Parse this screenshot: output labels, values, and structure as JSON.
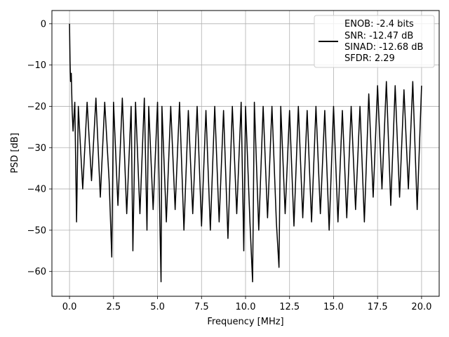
{
  "chart_data": {
    "type": "line",
    "title": "",
    "xlabel": "Frequency [MHz]",
    "ylabel": "PSD [dB]",
    "xlim": [
      -1.0,
      21.0
    ],
    "ylim": [
      -66.0,
      3.2
    ],
    "xticks": [
      0.0,
      2.5,
      5.0,
      7.5,
      10.0,
      12.5,
      15.0,
      17.5,
      20.0
    ],
    "xtick_labels": [
      "0.0",
      "2.5",
      "5.0",
      "7.5",
      "10.0",
      "12.5",
      "15.0",
      "17.5",
      "20.0"
    ],
    "yticks": [
      0,
      -10,
      -20,
      -30,
      -40,
      -50,
      -60
    ],
    "ytick_labels": [
      "0",
      "−10",
      "−20",
      "−30",
      "−40",
      "−50",
      "−60"
    ],
    "grid": true,
    "legend_position": "top-right",
    "legend_entries": [
      "ENOB: -2.4 bits",
      "SNR: -12.47 dB",
      "SINAD: -12.68 dB",
      "SFDR: 2.29"
    ],
    "line_color": "#000000",
    "series": [
      {
        "x": [
          0.0,
          0.03,
          0.06,
          0.1,
          0.15,
          0.2,
          0.3,
          0.4,
          0.5,
          0.75,
          1.0,
          1.25,
          1.5,
          1.75,
          2.0,
          2.25,
          2.4,
          2.5,
          2.75,
          3.0,
          3.25,
          3.5,
          3.6,
          3.75,
          4.0,
          4.25,
          4.4,
          4.5,
          4.75,
          5.0,
          5.2,
          5.25,
          5.5,
          5.75,
          6.0,
          6.25,
          6.5,
          6.75,
          7.0,
          7.25,
          7.5,
          7.75,
          8.0,
          8.25,
          8.5,
          8.75,
          9.0,
          9.25,
          9.5,
          9.75,
          9.9,
          10.0,
          10.25,
          10.4,
          10.5,
          10.75,
          11.0,
          11.25,
          11.5,
          11.75,
          11.9,
          12.0,
          12.25,
          12.5,
          12.75,
          13.0,
          13.25,
          13.5,
          13.75,
          14.0,
          14.25,
          14.5,
          14.75,
          15.0,
          15.25,
          15.5,
          15.75,
          16.0,
          16.25,
          16.5,
          16.75,
          17.0,
          17.25,
          17.5,
          17.75,
          18.0,
          18.25,
          18.5,
          18.75,
          19.0,
          19.25,
          19.5,
          19.75,
          20.0
        ],
        "y": [
          0.0,
          -9.0,
          -14.0,
          -12.0,
          -21.0,
          -26.0,
          -19.0,
          -48.0,
          -20.0,
          -40.0,
          -19.0,
          -38.0,
          -18.0,
          -42.0,
          -19.0,
          -38.0,
          -56.5,
          -19.0,
          -44.0,
          -18.0,
          -46.0,
          -20.0,
          -55.0,
          -19.0,
          -46.0,
          -18.0,
          -50.0,
          -20.0,
          -45.0,
          -19.0,
          -62.5,
          -20.0,
          -48.0,
          -20.0,
          -45.0,
          -19.0,
          -50.0,
          -21.0,
          -46.0,
          -20.0,
          -49.0,
          -21.0,
          -50.0,
          -20.0,
          -48.0,
          -21.0,
          -52.0,
          -20.0,
          -46.0,
          -19.0,
          -55.0,
          -20.0,
          -48.0,
          -62.5,
          -19.0,
          -50.0,
          -20.0,
          -47.0,
          -20.0,
          -48.0,
          -59.0,
          -20.0,
          -46.0,
          -21.0,
          -49.0,
          -20.0,
          -47.0,
          -21.0,
          -48.0,
          -20.0,
          -46.0,
          -21.0,
          -50.0,
          -20.0,
          -48.0,
          -21.0,
          -47.0,
          -20.0,
          -45.0,
          -20.0,
          -48.0,
          -17.0,
          -42.0,
          -15.0,
          -40.0,
          -14.0,
          -44.0,
          -15.0,
          -42.0,
          -16.0,
          -40.0,
          -14.0,
          -45.0,
          -15.0
        ]
      }
    ]
  }
}
